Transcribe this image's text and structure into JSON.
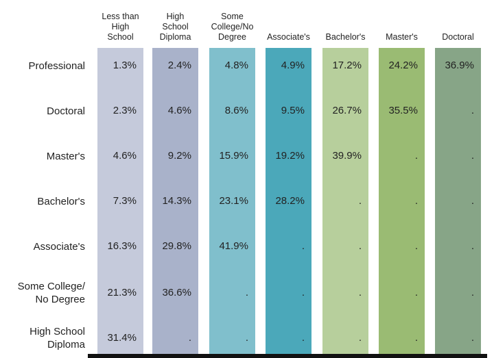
{
  "chart_data": {
    "type": "table",
    "columns": [
      "Less than High School",
      "High School Diploma",
      "Some College/No Degree",
      "Associate's",
      "Bachelor's",
      "Master's",
      "Doctoral"
    ],
    "column_labels": [
      [
        "Less than",
        "High",
        "School"
      ],
      [
        "High",
        "School",
        "Diploma"
      ],
      [
        "Some",
        "College/No",
        "Degree"
      ],
      [
        "Associate's"
      ],
      [
        "Bachelor's"
      ],
      [
        "Master's"
      ],
      [
        "Doctoral"
      ]
    ],
    "column_colors": [
      "#c5cadb",
      "#a9b2ca",
      "#80bfcc",
      "#4ba8ba",
      "#b7cf9c",
      "#9abb73",
      "#87a587"
    ],
    "rows": [
      {
        "label": [
          "Professional"
        ],
        "values": [
          "1.3%",
          "2.4%",
          "4.8%",
          "4.9%",
          "17.2%",
          "24.2%",
          "36.9%"
        ]
      },
      {
        "label": [
          "Doctoral"
        ],
        "values": [
          "2.3%",
          "4.6%",
          "8.6%",
          "9.5%",
          "26.7%",
          "35.5%",
          "."
        ]
      },
      {
        "label": [
          "Master's"
        ],
        "values": [
          "4.6%",
          "9.2%",
          "15.9%",
          "19.2%",
          "39.9%",
          ".",
          "."
        ]
      },
      {
        "label": [
          "Bachelor's"
        ],
        "values": [
          "7.3%",
          "14.3%",
          "23.1%",
          "28.2%",
          ".",
          ".",
          "."
        ]
      },
      {
        "label": [
          "Associate's"
        ],
        "values": [
          "16.3%",
          "29.8%",
          "41.9%",
          ".",
          ".",
          ".",
          "."
        ]
      },
      {
        "label": [
          "Some College/",
          "No Degree"
        ],
        "values": [
          "21.3%",
          "36.6%",
          ".",
          ".",
          ".",
          ".",
          "."
        ]
      },
      {
        "label": [
          "High School",
          "Diploma"
        ],
        "values": [
          "31.4%",
          ".",
          ".",
          ".",
          ".",
          ".",
          "."
        ]
      }
    ]
  }
}
